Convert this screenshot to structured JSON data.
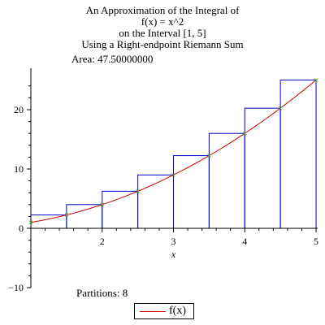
{
  "title_lines": [
    "An Approximation of the Integral of",
    "f(x) = x^2",
    "on the Interval [1, 5]",
    "Using a Right-endpoint Riemann Sum"
  ],
  "area_text": "Area: 47.50000000",
  "partitions_text": "Partitions: 8",
  "legend": {
    "label": "f(x)",
    "color": "#cc0000"
  },
  "colors": {
    "rectangles": "#0000cc",
    "curve": "#cc0000",
    "points": "#66aa33"
  },
  "chart_data": {
    "type": "line",
    "function": "x^2",
    "interval": [
      1,
      5
    ],
    "method": "right-endpoint",
    "partitions": 8,
    "area": 47.5,
    "xlabel": "x",
    "ylabel": "",
    "xlim": [
      1,
      5
    ],
    "ylim": [
      -10,
      27
    ],
    "x_ticks": [
      2,
      3,
      4,
      5
    ],
    "y_ticks": [
      -10,
      0,
      10,
      20
    ],
    "rectangles": [
      {
        "x0": 1.0,
        "x1": 1.5,
        "height": 2.25
      },
      {
        "x0": 1.5,
        "x1": 2.0,
        "height": 4.0
      },
      {
        "x0": 2.0,
        "x1": 2.5,
        "height": 6.25
      },
      {
        "x0": 2.5,
        "x1": 3.0,
        "height": 9.0
      },
      {
        "x0": 3.0,
        "x1": 3.5,
        "height": 12.25
      },
      {
        "x0": 3.5,
        "x1": 4.0,
        "height": 16.0
      },
      {
        "x0": 4.0,
        "x1": 4.5,
        "height": 20.25
      },
      {
        "x0": 4.5,
        "x1": 5.0,
        "height": 25.0
      }
    ],
    "series": [
      {
        "name": "f(x)",
        "x": [
          1,
          1.5,
          2,
          2.5,
          3,
          3.5,
          4,
          4.5,
          5
        ],
        "y": [
          1,
          2.25,
          4,
          6.25,
          9,
          12.25,
          16,
          20.25,
          25
        ]
      }
    ]
  }
}
